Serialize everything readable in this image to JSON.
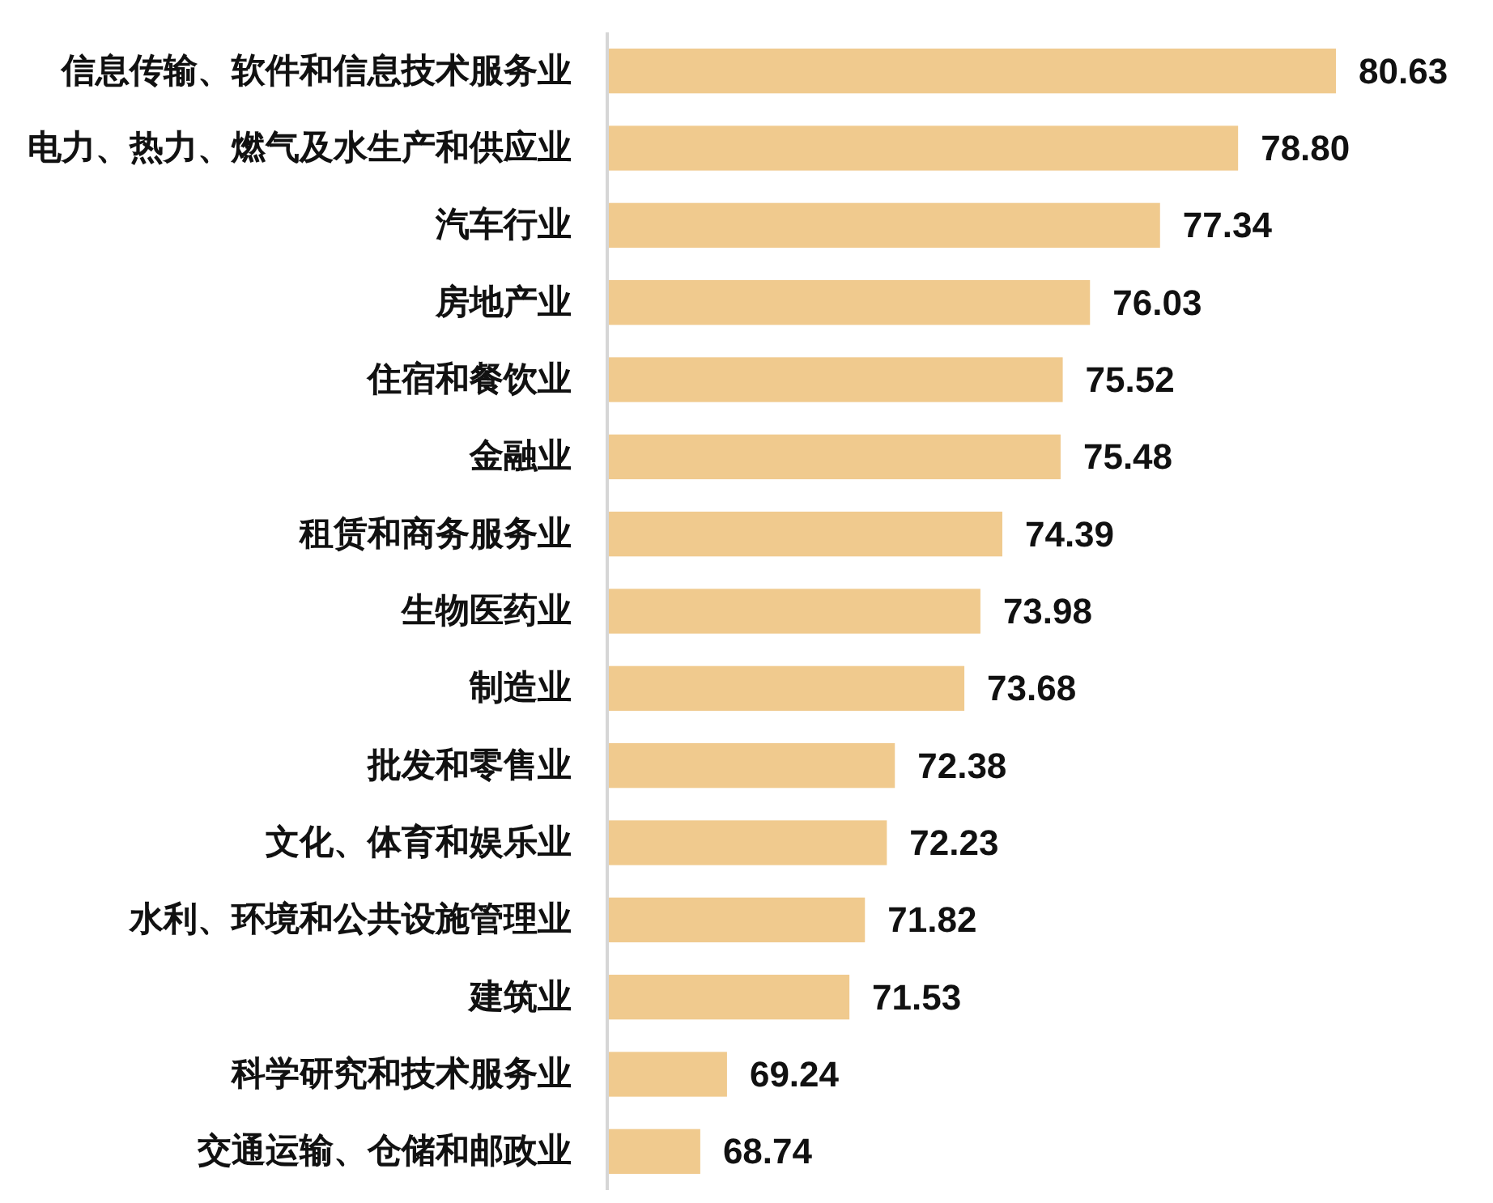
{
  "chart_data": {
    "type": "bar",
    "orientation": "horizontal",
    "tick_labels": "y",
    "categories": [
      "信息传输、软件和信息技术服务业",
      "电力、热力、燃气及水生产和供应业",
      "汽车行业",
      "房地产业",
      "住宿和餐饮业",
      "金融业",
      "租赁和商务服务业",
      "生物医药业",
      "制造业",
      "批发和零售业",
      "文化、体育和娱乐业",
      "水利、环境和公共设施管理业",
      "建筑业",
      "科学研究和技术服务业",
      "交通运输、仓储和邮政业"
    ],
    "values": [
      80.63,
      78.8,
      77.34,
      76.03,
      75.52,
      75.48,
      74.39,
      73.98,
      73.68,
      72.38,
      72.23,
      71.82,
      71.53,
      69.24,
      68.74
    ],
    "value_labels": [
      "80.63",
      "78.80",
      "77.34",
      "76.03",
      "75.52",
      "75.48",
      "74.39",
      "73.98",
      "73.68",
      "72.38",
      "72.23",
      "71.82",
      "71.53",
      "69.24",
      "68.74"
    ],
    "color": "#f0ca8e",
    "xlim": [
      67,
      80.63
    ]
  }
}
